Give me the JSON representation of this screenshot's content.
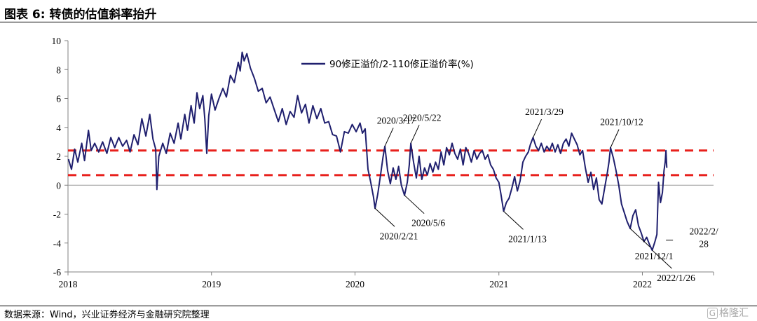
{
  "header": {
    "title": "图表 6:  转债的估值斜率抬升"
  },
  "footer": {
    "source": "数据来源：Wind，兴业证券经济与金融研究院整理",
    "watermark": "格隆汇",
    "watermark_mark": "G"
  },
  "chart_data": {
    "type": "line",
    "title": "图表 6:  转债的估值斜率抬升",
    "xlabel": "",
    "ylabel": "",
    "ylim": [
      -6,
      10
    ],
    "yticks": [
      -6,
      -4,
      -2,
      0,
      2,
      4,
      6,
      8,
      10
    ],
    "xlim": [
      "2018-01-01",
      "2022-07-01"
    ],
    "xtick_labels": [
      "2018",
      "2019",
      "2020",
      "2021",
      "2022"
    ],
    "legend_placement": "top-center",
    "grid": false,
    "series": [
      {
        "name": "90修正溢价/2-110修正溢价率(%)",
        "color": "#1f1f6e",
        "points": [
          [
            "2018-01-02",
            1.8
          ],
          [
            "2018-01-10",
            1.1
          ],
          [
            "2018-01-18",
            2.5
          ],
          [
            "2018-01-26",
            1.6
          ],
          [
            "2018-02-05",
            2.9
          ],
          [
            "2018-02-12",
            1.7
          ],
          [
            "2018-02-22",
            3.8
          ],
          [
            "2018-03-01",
            2.4
          ],
          [
            "2018-03-10",
            2.9
          ],
          [
            "2018-03-20",
            2.3
          ],
          [
            "2018-03-30",
            3.0
          ],
          [
            "2018-04-10",
            2.2
          ],
          [
            "2018-04-20",
            3.3
          ],
          [
            "2018-04-30",
            2.6
          ],
          [
            "2018-05-10",
            3.3
          ],
          [
            "2018-05-20",
            2.7
          ],
          [
            "2018-05-30",
            3.1
          ],
          [
            "2018-06-08",
            2.3
          ],
          [
            "2018-06-18",
            3.5
          ],
          [
            "2018-06-28",
            2.8
          ],
          [
            "2018-07-08",
            4.6
          ],
          [
            "2018-07-18",
            3.4
          ],
          [
            "2018-07-28",
            4.9
          ],
          [
            "2018-08-05",
            3.2
          ],
          [
            "2018-08-12",
            2.5
          ],
          [
            "2018-08-15",
            -0.3
          ],
          [
            "2018-08-20",
            2.0
          ],
          [
            "2018-08-30",
            2.9
          ],
          [
            "2018-09-08",
            2.2
          ],
          [
            "2018-09-18",
            3.6
          ],
          [
            "2018-09-28",
            2.9
          ],
          [
            "2018-10-08",
            4.3
          ],
          [
            "2018-10-15",
            3.2
          ],
          [
            "2018-10-25",
            4.9
          ],
          [
            "2018-11-01",
            3.8
          ],
          [
            "2018-11-10",
            5.5
          ],
          [
            "2018-11-18",
            4.3
          ],
          [
            "2018-11-25",
            6.4
          ],
          [
            "2018-12-02",
            5.3
          ],
          [
            "2018-12-10",
            6.2
          ],
          [
            "2018-12-15",
            4.6
          ],
          [
            "2018-12-20",
            2.2
          ],
          [
            "2018-12-25",
            4.8
          ],
          [
            "2019-01-01",
            6.3
          ],
          [
            "2019-01-10",
            5.2
          ],
          [
            "2019-01-20",
            6.0
          ],
          [
            "2019-01-30",
            6.7
          ],
          [
            "2019-02-08",
            6.1
          ],
          [
            "2019-02-18",
            7.6
          ],
          [
            "2019-02-28",
            7.1
          ],
          [
            "2019-03-10",
            8.5
          ],
          [
            "2019-03-15",
            7.9
          ],
          [
            "2019-03-20",
            9.2
          ],
          [
            "2019-03-25",
            8.6
          ],
          [
            "2019-04-01",
            9.1
          ],
          [
            "2019-04-10",
            8.1
          ],
          [
            "2019-04-20",
            7.4
          ],
          [
            "2019-04-30",
            6.5
          ],
          [
            "2019-05-10",
            6.7
          ],
          [
            "2019-05-20",
            5.7
          ],
          [
            "2019-05-30",
            6.1
          ],
          [
            "2019-06-10",
            5.2
          ],
          [
            "2019-06-20",
            4.4
          ],
          [
            "2019-06-30",
            5.3
          ],
          [
            "2019-07-10",
            4.2
          ],
          [
            "2019-07-20",
            5.1
          ],
          [
            "2019-07-30",
            4.7
          ],
          [
            "2019-08-08",
            6.2
          ],
          [
            "2019-08-18",
            5.0
          ],
          [
            "2019-08-28",
            5.6
          ],
          [
            "2019-09-06",
            4.3
          ],
          [
            "2019-09-16",
            5.5
          ],
          [
            "2019-09-26",
            4.6
          ],
          [
            "2019-10-06",
            5.3
          ],
          [
            "2019-10-16",
            4.3
          ],
          [
            "2019-10-26",
            4.4
          ],
          [
            "2019-11-05",
            3.5
          ],
          [
            "2019-11-15",
            3.4
          ],
          [
            "2019-11-25",
            2.3
          ],
          [
            "2019-12-05",
            3.7
          ],
          [
            "2019-12-15",
            3.6
          ],
          [
            "2019-12-25",
            4.2
          ],
          [
            "2020-01-04",
            3.7
          ],
          [
            "2020-01-14",
            4.3
          ],
          [
            "2020-01-20",
            3.6
          ],
          [
            "2020-01-27",
            3.9
          ],
          [
            "2020-02-03",
            1.1
          ],
          [
            "2020-02-10",
            0.2
          ],
          [
            "2020-02-17",
            -0.8
          ],
          [
            "2020-02-21",
            -1.6
          ],
          [
            "2020-02-28",
            -0.6
          ],
          [
            "2020-03-06",
            0.7
          ],
          [
            "2020-03-12",
            1.9
          ],
          [
            "2020-03-17",
            2.7
          ],
          [
            "2020-03-24",
            1.0
          ],
          [
            "2020-03-31",
            0.1
          ],
          [
            "2020-04-07",
            1.2
          ],
          [
            "2020-04-14",
            0.4
          ],
          [
            "2020-04-21",
            1.3
          ],
          [
            "2020-04-28",
            0.0
          ],
          [
            "2020-05-06",
            -0.7
          ],
          [
            "2020-05-13",
            0.2
          ],
          [
            "2020-05-18",
            1.4
          ],
          [
            "2020-05-22",
            2.9
          ],
          [
            "2020-05-29",
            1.6
          ],
          [
            "2020-06-05",
            0.5
          ],
          [
            "2020-06-12",
            2.0
          ],
          [
            "2020-06-19",
            0.4
          ],
          [
            "2020-06-26",
            1.2
          ],
          [
            "2020-07-03",
            0.7
          ],
          [
            "2020-07-10",
            1.5
          ],
          [
            "2020-07-17",
            0.9
          ],
          [
            "2020-07-24",
            1.6
          ],
          [
            "2020-07-31",
            1.1
          ],
          [
            "2020-08-07",
            2.3
          ],
          [
            "2020-08-14",
            1.4
          ],
          [
            "2020-08-21",
            2.6
          ],
          [
            "2020-08-28",
            2.1
          ],
          [
            "2020-09-04",
            2.9
          ],
          [
            "2020-09-11",
            2.2
          ],
          [
            "2020-09-18",
            1.8
          ],
          [
            "2020-09-25",
            2.5
          ],
          [
            "2020-10-02",
            1.4
          ],
          [
            "2020-10-09",
            2.6
          ],
          [
            "2020-10-16",
            2.2
          ],
          [
            "2020-10-23",
            1.6
          ],
          [
            "2020-10-30",
            2.4
          ],
          [
            "2020-11-06",
            1.8
          ],
          [
            "2020-11-13",
            2.2
          ],
          [
            "2020-11-20",
            2.4
          ],
          [
            "2020-11-27",
            1.8
          ],
          [
            "2020-12-04",
            2.1
          ],
          [
            "2020-12-11",
            1.4
          ],
          [
            "2020-12-18",
            1.1
          ],
          [
            "2020-12-25",
            0.5
          ],
          [
            "2021-01-01",
            0.2
          ],
          [
            "2021-01-06",
            -0.6
          ],
          [
            "2021-01-13",
            -1.8
          ],
          [
            "2021-01-20",
            -1.2
          ],
          [
            "2021-01-27",
            -0.9
          ],
          [
            "2021-02-03",
            -0.2
          ],
          [
            "2021-02-10",
            0.6
          ],
          [
            "2021-02-17",
            -0.4
          ],
          [
            "2021-02-24",
            0.3
          ],
          [
            "2021-03-03",
            1.6
          ],
          [
            "2021-03-10",
            2.0
          ],
          [
            "2021-03-17",
            2.3
          ],
          [
            "2021-03-22",
            2.8
          ],
          [
            "2021-03-29",
            3.3
          ],
          [
            "2021-04-05",
            2.7
          ],
          [
            "2021-04-12",
            2.4
          ],
          [
            "2021-04-19",
            2.9
          ],
          [
            "2021-04-26",
            2.3
          ],
          [
            "2021-05-03",
            2.7
          ],
          [
            "2021-05-10",
            2.4
          ],
          [
            "2021-05-17",
            2.9
          ],
          [
            "2021-05-24",
            2.3
          ],
          [
            "2021-05-31",
            2.8
          ],
          [
            "2021-06-07",
            2.2
          ],
          [
            "2021-06-14",
            2.9
          ],
          [
            "2021-06-21",
            3.2
          ],
          [
            "2021-06-28",
            2.7
          ],
          [
            "2021-07-05",
            3.6
          ],
          [
            "2021-07-12",
            3.2
          ],
          [
            "2021-07-19",
            2.8
          ],
          [
            "2021-07-26",
            2.1
          ],
          [
            "2021-08-02",
            2.4
          ],
          [
            "2021-08-09",
            1.2
          ],
          [
            "2021-08-16",
            0.2
          ],
          [
            "2021-08-23",
            0.9
          ],
          [
            "2021-08-30",
            -0.3
          ],
          [
            "2021-09-06",
            0.5
          ],
          [
            "2021-09-13",
            -1.0
          ],
          [
            "2021-09-20",
            -1.3
          ],
          [
            "2021-09-27",
            -0.2
          ],
          [
            "2021-10-04",
            0.9
          ],
          [
            "2021-10-08",
            1.6
          ],
          [
            "2021-10-12",
            2.6
          ],
          [
            "2021-10-19",
            1.9
          ],
          [
            "2021-10-26",
            1.0
          ],
          [
            "2021-11-02",
            0.0
          ],
          [
            "2021-11-09",
            -1.3
          ],
          [
            "2021-11-16",
            -1.9
          ],
          [
            "2021-11-23",
            -2.5
          ],
          [
            "2021-12-01",
            -3.0
          ],
          [
            "2021-12-08",
            -2.1
          ],
          [
            "2021-12-15",
            -1.7
          ],
          [
            "2021-12-22",
            -2.8
          ],
          [
            "2021-12-29",
            -3.3
          ],
          [
            "2022-01-05",
            -3.9
          ],
          [
            "2022-01-12",
            -3.6
          ],
          [
            "2022-01-19",
            -4.1
          ],
          [
            "2022-01-26",
            -4.5
          ],
          [
            "2022-02-02",
            -3.9
          ],
          [
            "2022-02-07",
            -3.4
          ],
          [
            "2022-02-11",
            0.2
          ],
          [
            "2022-02-16",
            -1.2
          ],
          [
            "2022-02-21",
            -0.5
          ],
          [
            "2022-02-25",
            1.0
          ],
          [
            "2022-02-28",
            1.6
          ],
          [
            "2022-03-02",
            2.4
          ],
          [
            "2022-03-04",
            1.2
          ]
        ]
      }
    ],
    "reference_lines": [
      {
        "y": 2.4,
        "style": "dashed",
        "color": "#e8201c"
      },
      {
        "y": 0.7,
        "style": "dashed",
        "color": "#e8201c"
      }
    ],
    "annotations": [
      {
        "text": "2020/2/21",
        "point": [
          "2020-02-21",
          -1.6
        ],
        "label_side": "below"
      },
      {
        "text": "2020/3/17",
        "point": [
          "2020-03-17",
          2.7
        ],
        "label_side": "above"
      },
      {
        "text": "2020/5/6",
        "point": [
          "2020-05-06",
          -0.7
        ],
        "label_side": "below"
      },
      {
        "text": "2020/5/22",
        "point": [
          "2020-05-22",
          2.9
        ],
        "label_side": "above"
      },
      {
        "text": "2021/1/13",
        "point": [
          "2021-01-13",
          -1.8
        ],
        "label_side": "below"
      },
      {
        "text": "2021/3/29",
        "point": [
          "2021-03-29",
          3.3
        ],
        "label_side": "above"
      },
      {
        "text": "2021/10/12",
        "point": [
          "2021-10-12",
          2.6
        ],
        "label_side": "above"
      },
      {
        "text": "2021/12/1",
        "point": [
          "2021-12-01",
          -3.0
        ],
        "label_side": "below"
      },
      {
        "text": "2022/1/26",
        "point": [
          "2022-01-26",
          -4.5
        ],
        "label_side": "below"
      },
      {
        "text": "2022/2/28",
        "point": [
          "2022-03-02",
          -3.8
        ],
        "label_side": "right",
        "lines": [
          "2022/2/",
          "28"
        ]
      }
    ]
  }
}
